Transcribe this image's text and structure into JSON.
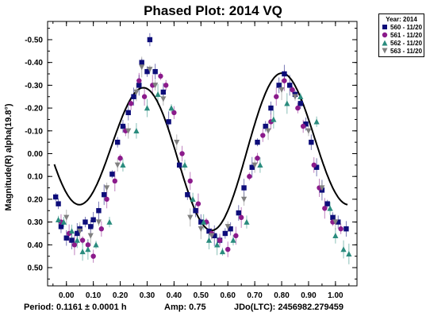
{
  "colors": {
    "series": [
      "#0d0d7a",
      "#8b1a8b",
      "#2a8c7e",
      "#808080"
    ],
    "curve": "#000000",
    "error_bar": "#b0b0d0"
  },
  "chart_data": {
    "type": "scatter",
    "title": "Phased Plot: 2014 VQ",
    "ylabel": "Magnitude(R) alpha(19.8°)",
    "xlabel": "",
    "xlim": [
      -0.07,
      1.08
    ],
    "ylim": [
      0.58,
      -0.58
    ],
    "y_inverted": true,
    "x_ticks": [
      "0.00",
      "0.10",
      "0.20",
      "0.30",
      "0.40",
      "0.50",
      "0.60",
      "0.70",
      "0.80",
      "0.90",
      "1.00"
    ],
    "y_ticks": [
      "-0.50",
      "-0.40",
      "-0.30",
      "-0.20",
      "-0.10",
      "0.00",
      "0.10",
      "0.20",
      "0.30",
      "0.40",
      "0.50"
    ],
    "grid": false,
    "legend": {
      "title": "Year: 2014",
      "placement": "top-right, outside plot",
      "entries": [
        "560 - 11/20",
        "561 - 11/20",
        "562 - 11/20",
        "563 - 11/20"
      ]
    },
    "series": [
      {
        "name": "560 - 11/20",
        "marker": "square",
        "x": [
          -0.04,
          -0.03,
          -0.02,
          0.0,
          0.02,
          0.04,
          0.05,
          0.07,
          0.09,
          0.1,
          0.12,
          0.14,
          0.17,
          0.19,
          0.21,
          0.23,
          0.25,
          0.27,
          0.28,
          0.3,
          0.31,
          0.33,
          0.36,
          0.38,
          0.42,
          0.45,
          0.48,
          0.5,
          0.53,
          0.55,
          0.57,
          0.59,
          0.61,
          0.64,
          0.66,
          0.69,
          0.71,
          0.74,
          0.76,
          0.79,
          0.81,
          0.83,
          0.85,
          0.87,
          0.89,
          0.91,
          0.93,
          0.95,
          0.97,
          0.99,
          1.01,
          1.04
        ],
        "y": [
          0.19,
          0.22,
          0.32,
          0.37,
          0.38,
          0.35,
          0.33,
          0.3,
          0.32,
          0.29,
          0.25,
          0.18,
          0.09,
          -0.05,
          -0.12,
          -0.18,
          -0.25,
          -0.3,
          -0.4,
          -0.36,
          -0.5,
          -0.36,
          -0.27,
          -0.14,
          0.05,
          0.18,
          0.25,
          0.3,
          0.34,
          0.36,
          0.38,
          0.35,
          0.33,
          0.26,
          0.15,
          0.06,
          -0.05,
          -0.12,
          -0.2,
          -0.3,
          -0.35,
          -0.3,
          -0.26,
          -0.22,
          -0.13,
          -0.05,
          0.06,
          0.16,
          0.22,
          0.28,
          0.3,
          0.33
        ]
      },
      {
        "name": "561 - 11/20",
        "marker": "circle",
        "x": [
          -0.02,
          0.01,
          0.03,
          0.06,
          0.08,
          0.1,
          0.13,
          0.15,
          0.18,
          0.2,
          0.22,
          0.24,
          0.27,
          0.29,
          0.32,
          0.35,
          0.37,
          0.4,
          0.43,
          0.46,
          0.49,
          0.52,
          0.54,
          0.57,
          0.6,
          0.63,
          0.65,
          0.68,
          0.71,
          0.73,
          0.76,
          0.78,
          0.81,
          0.84,
          0.86,
          0.88,
          0.92,
          0.94,
          0.96,
          0.99,
          1.02
        ],
        "y": [
          0.3,
          0.35,
          0.4,
          0.38,
          0.4,
          0.45,
          0.33,
          0.2,
          0.12,
          0.02,
          -0.1,
          -0.22,
          -0.32,
          -0.25,
          -0.3,
          -0.34,
          -0.3,
          -0.18,
          0.0,
          0.12,
          0.22,
          0.3,
          0.35,
          0.38,
          0.42,
          0.36,
          0.28,
          0.1,
          0.02,
          -0.08,
          -0.14,
          -0.25,
          -0.32,
          -0.28,
          -0.2,
          -0.12,
          0.05,
          0.15,
          0.24,
          0.3,
          0.33
        ]
      },
      {
        "name": "562 - 11/20",
        "marker": "triangle",
        "x": [
          -0.03,
          -0.01,
          0.02,
          0.04,
          0.06,
          0.08,
          0.11,
          0.16,
          0.21,
          0.26,
          0.3,
          0.34,
          0.39,
          0.44,
          0.47,
          0.51,
          0.53,
          0.56,
          0.58,
          0.62,
          0.67,
          0.72,
          0.77,
          0.82,
          0.87,
          0.93,
          0.98,
          1.0,
          1.03,
          1.05
        ],
        "y": [
          0.29,
          0.3,
          0.34,
          0.38,
          0.43,
          0.42,
          0.4,
          0.3,
          0.05,
          -0.1,
          -0.2,
          -0.26,
          -0.2,
          0.05,
          0.2,
          0.3,
          0.38,
          0.4,
          0.43,
          0.38,
          0.3,
          0.05,
          -0.15,
          -0.22,
          -0.25,
          -0.14,
          0.24,
          0.36,
          0.42,
          0.44
        ]
      },
      {
        "name": "563 - 11/20",
        "marker": "triangle-down",
        "x": [
          0.0,
          0.05,
          0.09,
          0.12,
          0.15,
          0.19,
          0.23,
          0.26,
          0.28,
          0.31,
          0.33,
          0.36,
          0.41,
          0.46,
          0.5,
          0.54,
          0.6,
          0.66,
          0.7,
          0.75,
          0.8,
          0.85,
          0.9,
          0.95,
          1.0
        ],
        "y": [
          0.28,
          0.34,
          0.36,
          0.3,
          0.15,
          0.05,
          -0.1,
          -0.27,
          -0.38,
          -0.37,
          -0.3,
          -0.24,
          -0.05,
          0.28,
          0.33,
          0.36,
          0.32,
          0.2,
          0.05,
          -0.1,
          -0.28,
          -0.25,
          -0.1,
          0.15,
          0.3
        ]
      }
    ],
    "fit_curve": {
      "name": "fit",
      "amplitude_note": "Amp: 0.75"
    }
  },
  "footer": {
    "period": "Period: 0.1161 ± 0.0001 h",
    "amp": "Amp: 0.75",
    "jdo": "JDo(LTC): 2456982.279459"
  }
}
